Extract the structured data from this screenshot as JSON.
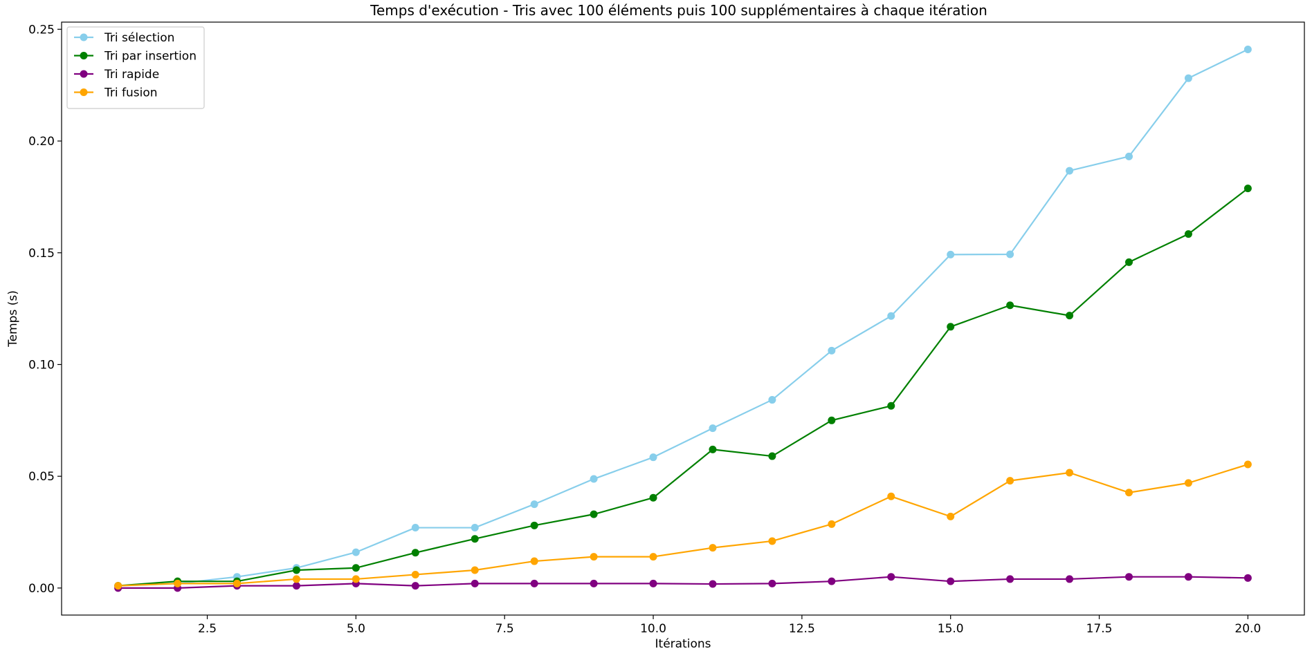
{
  "chart_data": {
    "type": "line",
    "title": "Temps d'exécution - Tris avec 100 éléments puis 100 supplémentaires à chaque itération",
    "xlabel": "Itérations",
    "ylabel": "Temps (s)",
    "xlim": [
      0.05,
      20.95
    ],
    "ylim": [
      -0.0121,
      0.2532
    ],
    "x_ticks": [
      2.5,
      5.0,
      7.5,
      10.0,
      12.5,
      15.0,
      17.5,
      20.0
    ],
    "x_tick_labels": [
      "2.5",
      "5.0",
      "7.5",
      "10.0",
      "12.5",
      "15.0",
      "17.5",
      "20.0"
    ],
    "y_ticks": [
      0.0,
      0.05,
      0.1,
      0.15,
      0.2,
      0.25
    ],
    "y_tick_labels": [
      "0.00",
      "0.05",
      "0.10",
      "0.15",
      "0.20",
      "0.25"
    ],
    "grid": false,
    "legend_position": "top-left",
    "x": [
      1,
      2,
      3,
      4,
      5,
      6,
      7,
      8,
      9,
      10,
      11,
      12,
      13,
      14,
      15,
      16,
      17,
      18,
      19,
      20
    ],
    "series": [
      {
        "name": "Tri sélection",
        "color": "#87ceeb",
        "values": [
          0.001,
          0.002,
          0.005,
          0.009,
          0.016,
          0.027,
          0.027,
          0.0375,
          0.0488,
          0.0585,
          0.0715,
          0.0842,
          0.1062,
          0.1217,
          0.1492,
          0.1493,
          0.1867,
          0.1931,
          0.2281,
          0.241
        ]
      },
      {
        "name": "Tri par insertion",
        "color": "#008000",
        "values": [
          0.001,
          0.003,
          0.003,
          0.008,
          0.009,
          0.0158,
          0.022,
          0.028,
          0.033,
          0.0404,
          0.062,
          0.059,
          0.075,
          0.0815,
          0.1169,
          0.1265,
          0.1219,
          0.1458,
          0.1584,
          0.1788
        ]
      },
      {
        "name": "Tri rapide",
        "color": "#800080",
        "values": [
          0.0,
          0.0,
          0.001,
          0.001,
          0.002,
          0.001,
          0.002,
          0.002,
          0.002,
          0.002,
          0.0018,
          0.002,
          0.003,
          0.005,
          0.003,
          0.004,
          0.004,
          0.005,
          0.005,
          0.0045
        ]
      },
      {
        "name": "Tri fusion",
        "color": "#ffa500",
        "values": [
          0.001,
          0.002,
          0.002,
          0.004,
          0.004,
          0.006,
          0.008,
          0.012,
          0.014,
          0.014,
          0.018,
          0.021,
          0.0286,
          0.041,
          0.032,
          0.048,
          0.0516,
          0.0427,
          0.047,
          0.0553
        ]
      }
    ]
  }
}
